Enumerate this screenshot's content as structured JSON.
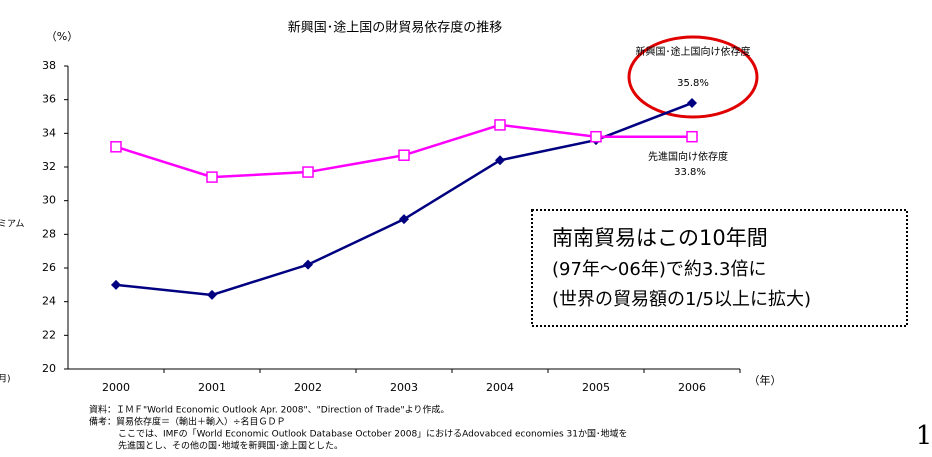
{
  "chart_data": {
    "type": "line",
    "title": "新興国･途上国の財貿易依存度の推移",
    "y_unit": "（%）",
    "x_unit": "（年）",
    "categories": [
      "2000",
      "2001",
      "2002",
      "2003",
      "2004",
      "2005",
      "2006"
    ],
    "series": [
      {
        "name": "新興国･途上国向け依存度",
        "color": "#000080",
        "marker": "diamond",
        "values": [
          25.0,
          24.4,
          26.2,
          28.9,
          32.4,
          33.6,
          35.8
        ],
        "end_label": "35.8%"
      },
      {
        "name": "先進国向け依存度",
        "color": "#ff00ff",
        "marker": "square",
        "values": [
          33.2,
          31.4,
          31.7,
          32.7,
          34.5,
          33.8,
          33.8
        ],
        "end_label": "33.8%"
      }
    ],
    "ylim": [
      20,
      38
    ],
    "yticks": [
      20,
      22,
      24,
      26,
      28,
      30,
      32,
      34,
      36,
      38
    ],
    "callout": [
      "南南貿易はこの10年間",
      "(97年～06年)で約3.3倍に",
      "(世界の貿易額の1/5以上に拡大)"
    ],
    "notes": [
      "資料：ＩＭＦ\"World Economic Outlook Apr. 2008\"、\"Direction of Trade\"より作成。",
      "備考：貿易依存度＝（輸出＋輸入）÷名目ＧＤＰ",
      "ここでは、IMFの「World Economic Outlook Database October 2008」におけるAdovabced economies 31か国･地域を",
      "先進国とし、その他の国･地域を新興国･途上国とした。"
    ],
    "page_number": "1",
    "edge_fragments": [
      "ミアム",
      "月)"
    ]
  }
}
